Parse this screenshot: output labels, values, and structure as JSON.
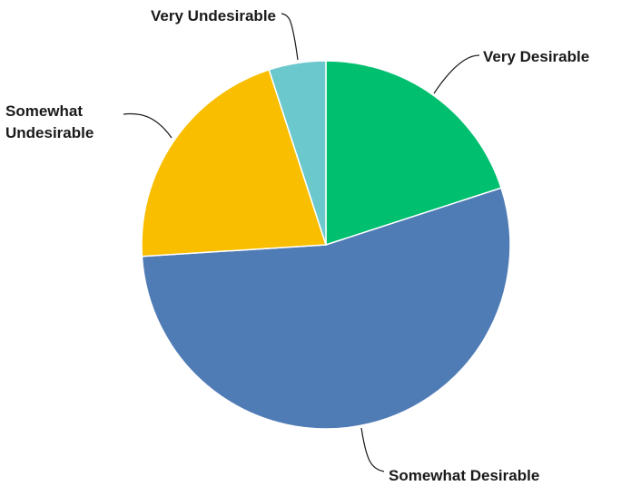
{
  "chart_data": {
    "type": "pie",
    "title": "",
    "start_angle_deg": 0,
    "direction": "clockwise",
    "slices": [
      {
        "label": [
          "Very Desirable"
        ],
        "value": 20,
        "color": "#00bf6f"
      },
      {
        "label": [
          "Somewhat Desirable"
        ],
        "value": 54,
        "color": "#507cb6"
      },
      {
        "label": [
          "Somewhat",
          "Undesirable"
        ],
        "value": 21,
        "color": "#f9be00"
      },
      {
        "label": [
          "Very Undesirable"
        ],
        "value": 5,
        "color": "#6bc8cd"
      }
    ]
  }
}
